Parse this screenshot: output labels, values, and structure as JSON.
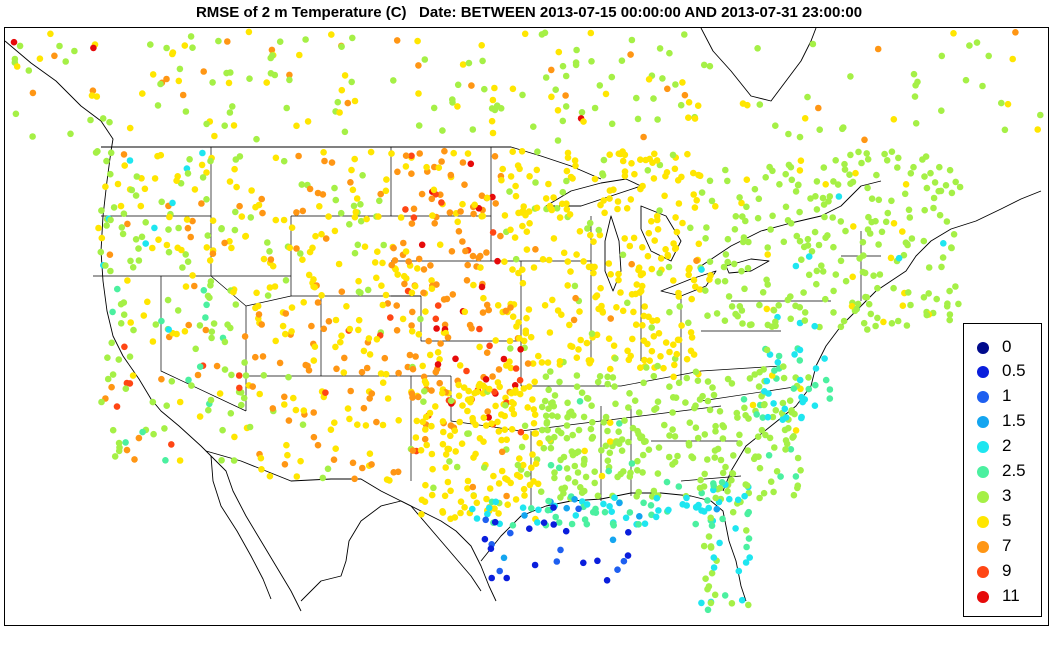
{
  "title": "RMSE of 2 m Temperature (C)   Date: BETWEEN 2013-07-15 00:00:00 AND 2013-07-31 23:00:00",
  "legend": [
    {
      "label": "0",
      "color": "#000a8c"
    },
    {
      "label": "0.5",
      "color": "#0a1edc"
    },
    {
      "label": "1",
      "color": "#1e5ff0"
    },
    {
      "label": "1.5",
      "color": "#14a5f0"
    },
    {
      "label": "2",
      "color": "#1ee6f0"
    },
    {
      "label": "2.5",
      "color": "#4bf0a0"
    },
    {
      "label": "3",
      "color": "#a5f046"
    },
    {
      "label": "5",
      "color": "#ffe600"
    },
    {
      "label": "7",
      "color": "#ff9614"
    },
    {
      "label": "9",
      "color": "#ff4614"
    },
    {
      "label": "11",
      "color": "#e60a0a"
    }
  ]
}
